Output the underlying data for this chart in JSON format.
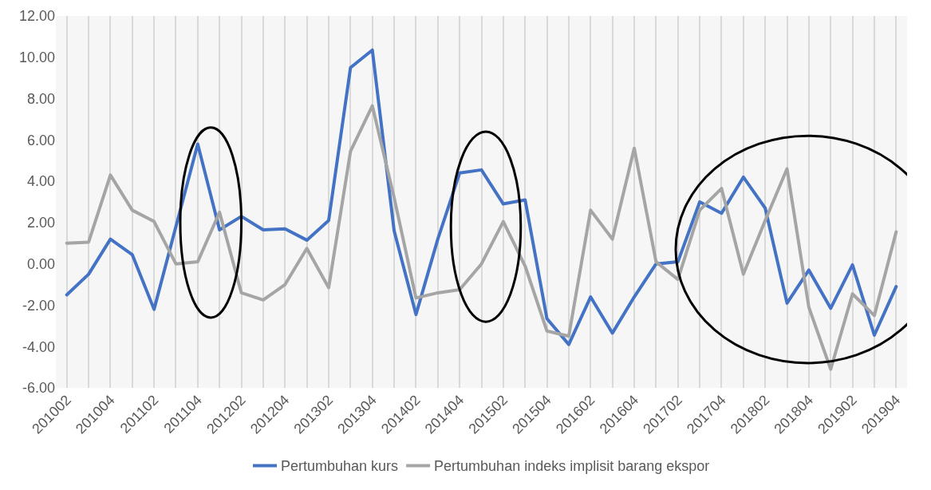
{
  "chart_data": {
    "type": "line",
    "categories": [
      "201002",
      null,
      "201004",
      null,
      "201102",
      null,
      "201104",
      null,
      "201202",
      null,
      "201204",
      null,
      "201302",
      null,
      "201304",
      null,
      "201402",
      null,
      "201404",
      null,
      "201502",
      null,
      "201504",
      null,
      "201602",
      null,
      "201604",
      null,
      "201702",
      null,
      "201704",
      null,
      "201802",
      null,
      "201804",
      null,
      "201902",
      null,
      "201904"
    ],
    "series": [
      {
        "name": "Pertumbuhan kurs",
        "color": "#4472c4",
        "values": [
          -1.5,
          -0.5,
          1.2,
          0.45,
          -2.2,
          1.8,
          5.8,
          1.65,
          2.3,
          1.65,
          1.7,
          1.15,
          2.1,
          9.5,
          10.35,
          1.6,
          -2.45,
          1.2,
          4.4,
          4.55,
          2.9,
          3.1,
          -2.65,
          -3.9,
          -1.6,
          -3.35,
          -1.6,
          0.0,
          0.1,
          3.0,
          2.45,
          4.2,
          2.7,
          -1.9,
          -0.3,
          -2.15,
          -0.05,
          -3.45,
          -1.1
        ]
      },
      {
        "name": "Pertumbuhan indeks implisit barang ekspor",
        "color": "#a5a5a5",
        "values": [
          1.0,
          1.05,
          4.3,
          2.6,
          2.05,
          0.0,
          0.1,
          2.5,
          -1.4,
          -1.75,
          -1.0,
          0.75,
          -1.15,
          5.45,
          7.65,
          3.2,
          -1.65,
          -1.4,
          -1.25,
          0.0,
          2.05,
          -0.1,
          -3.25,
          -3.5,
          2.6,
          1.2,
          5.6,
          0.1,
          -0.75,
          2.6,
          3.65,
          -0.5,
          2.1,
          4.6,
          -2.1,
          -5.1,
          -1.45,
          -2.5,
          1.55
        ]
      }
    ],
    "ylim": [
      -6,
      12
    ],
    "yticks": [
      {
        "value": -6,
        "label": "-6.00"
      },
      {
        "value": -4,
        "label": "-4.00"
      },
      {
        "value": -2,
        "label": "-2.00"
      },
      {
        "value": 0,
        "label": "0.00"
      },
      {
        "value": 2,
        "label": "2.00"
      },
      {
        "value": 4,
        "label": "4.00"
      },
      {
        "value": 6,
        "label": "6.00"
      },
      {
        "value": 8,
        "label": "8.00"
      },
      {
        "value": 10,
        "label": "10.00"
      },
      {
        "value": 12,
        "label": "12.00"
      }
    ],
    "grid": "x",
    "legend": "bottom",
    "marker": "none",
    "line_style": "solid"
  }
}
